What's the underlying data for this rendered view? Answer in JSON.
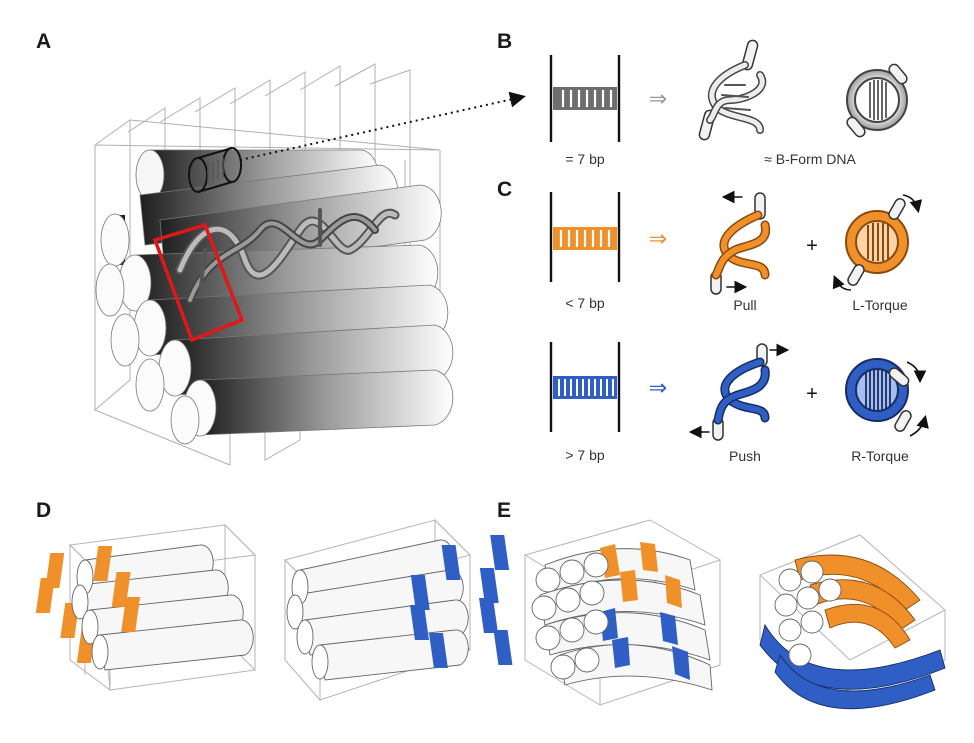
{
  "panels": {
    "a": {
      "letter": "A"
    },
    "b": {
      "letter": "B",
      "ladder_caption": "= 7 bp",
      "helix_caption": "≈ B-Form DNA",
      "arrow_glyph": "⇒"
    },
    "c": {
      "letter": "C",
      "short": {
        "ladder_caption": "< 7 bp",
        "helix_caption": "Pull",
        "plus": "+",
        "ring_caption": "L-Torque",
        "arrow_glyph": "⇒"
      },
      "long": {
        "ladder_caption": "> 7 bp",
        "helix_caption": "Push",
        "plus": "+",
        "ring_caption": "R-Torque",
        "arrow_glyph": "⇒"
      }
    },
    "d": {
      "letter": "D"
    },
    "e": {
      "letter": "E"
    }
  },
  "colors": {
    "neutral": "#6e6e6e",
    "underwound": "#f0902a",
    "overwound": "#2f5fc4",
    "highlight_box": "#e01818",
    "frame_line": "#a8a8a8"
  }
}
